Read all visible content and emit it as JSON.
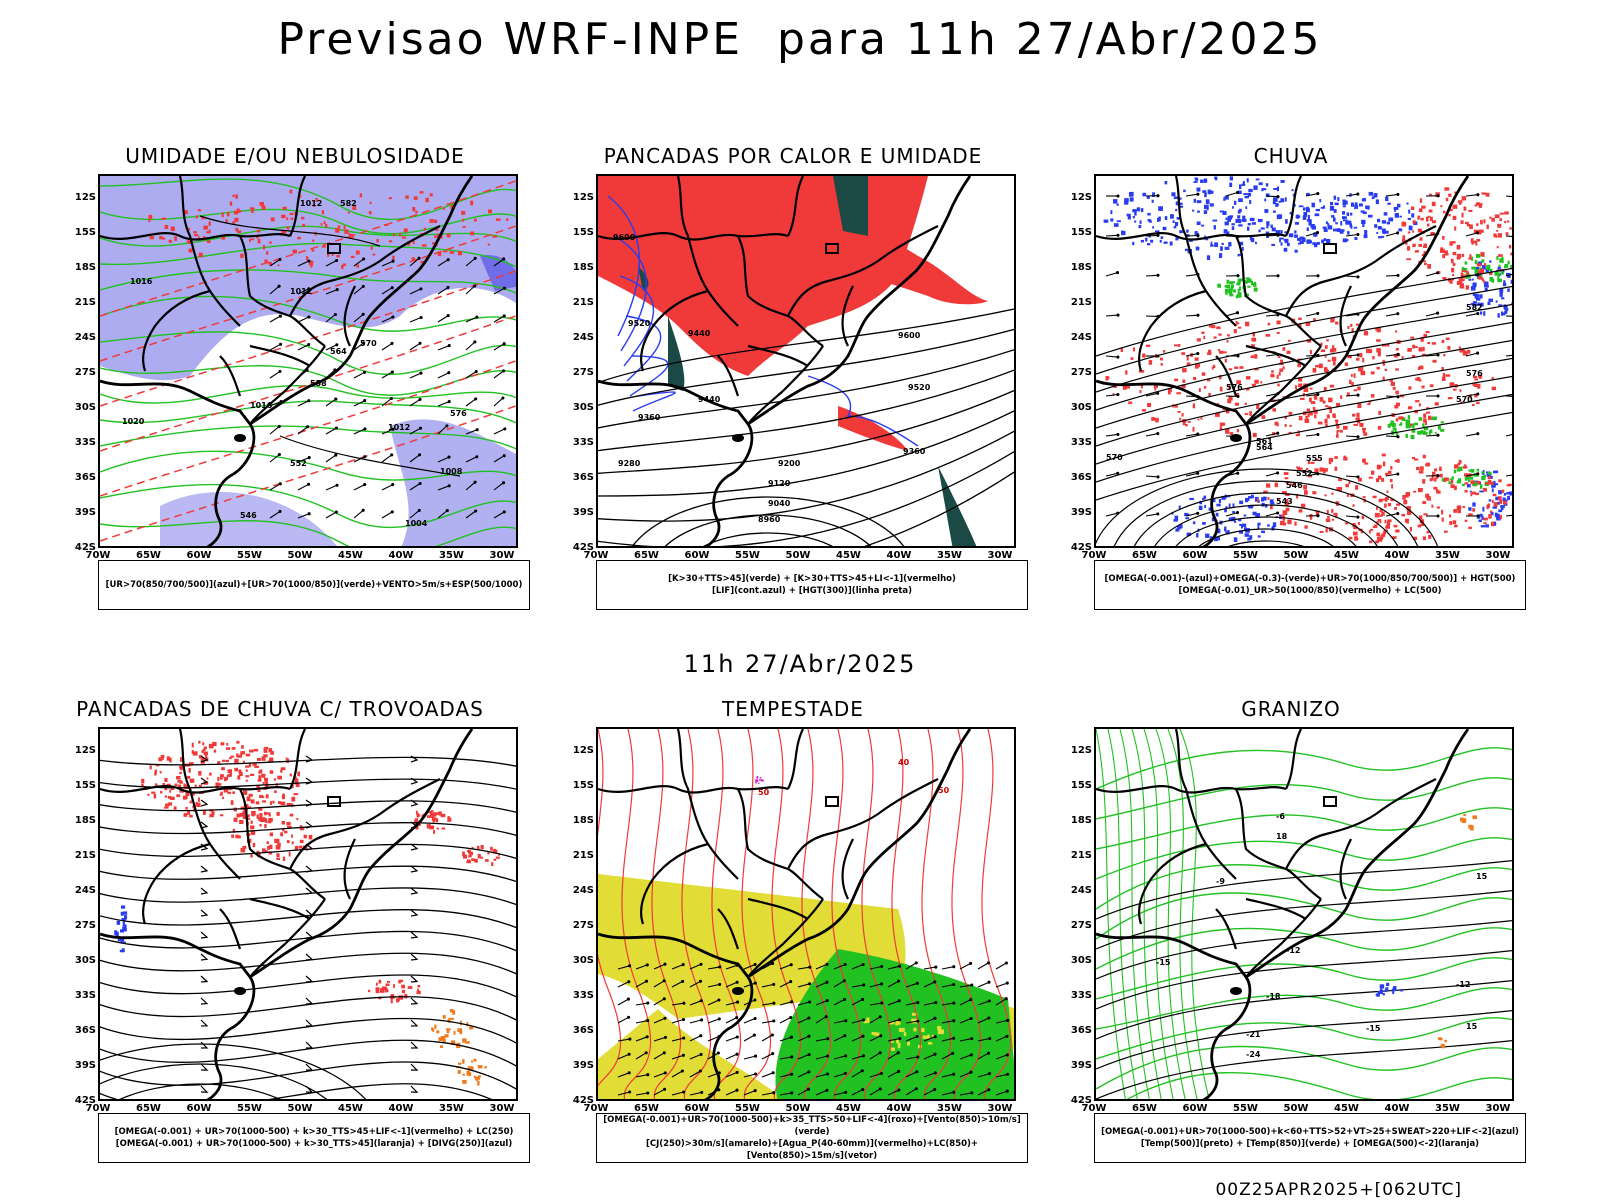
{
  "header": {
    "title": "Previsao WRF-INPE  para 11h 27/Abr/2025",
    "mid_title": "11h 27/Abr/2025",
    "footer": "00Z25APR2025+[062UTC]"
  },
  "axes": {
    "lat_labels": [
      "12S",
      "15S",
      "18S",
      "21S",
      "24S",
      "27S",
      "30S",
      "33S",
      "36S",
      "39S",
      "42S"
    ],
    "lon_labels": [
      "70W",
      "65W",
      "60W",
      "55W",
      "50W",
      "45W",
      "40W",
      "35W",
      "30W"
    ]
  },
  "colors": {
    "red": "#f03a3a",
    "blue": "#2a3cf0",
    "green": "#22c122",
    "lavender": "#a9a8f0",
    "yellow": "#e1dc36",
    "darkteal": "#1b4a46",
    "orange": "#f07a1a",
    "magenta": "#d21ad2"
  },
  "panels": [
    {
      "id": "umidade",
      "title": "UMIDADE E/OU NEBULOSIDADE",
      "legend": [
        "[UR>70(850/700/500)](azul)+[UR>70(1000/850)](verde)+VENTO>5m/s+ESP(500/1000)"
      ],
      "contour_labels": [
        "1012",
        "1012",
        "1016",
        "1020",
        "1016",
        "1008",
        "1004",
        "1012",
        "576",
        "570",
        "564",
        "558",
        "552",
        "546",
        "582"
      ]
    },
    {
      "id": "pancadas-calor",
      "title": "PANCADAS POR CALOR E UMIDADE",
      "legend": [
        "[K>30+TTS>45](verde) + [K>30+TTS>45+LI<-1](vermelho)",
        "[LIF](cont.azul) + [HGT(300)](linha preta)"
      ],
      "contour_labels": [
        "9600",
        "9520",
        "9440",
        "9360",
        "9280",
        "9200",
        "9120",
        "9040",
        "8960",
        "9600",
        "9520",
        "9440",
        "9360"
      ]
    },
    {
      "id": "chuva",
      "title": "CHUVA",
      "legend": [
        "[OMEGA(-0.001)-(azul)+OMEGA(-0.3)-(verde)+UR>70(1000/850/700/500)] + HGT(500)",
        "[OMEGA(-0.01)_UR>50(1000/850)(vermelho) + LC(500)"
      ],
      "contour_labels": [
        "582",
        "576",
        "570",
        "564",
        "561",
        "555",
        "552",
        "546",
        "543",
        "576",
        "570"
      ]
    },
    {
      "id": "pancadas-trovoadas",
      "title": "PANCADAS DE CHUVA C/ TROVOADAS",
      "legend": [
        "[OMEGA(-0.001) + UR>70(1000-500) + k>30_TTS>45+LIF<-1](vermelho) + LC(250)",
        "[OMEGA(-0.001) + UR>70(1000-500) + k>30_TTS>45](laranja) + [DIVG(250)](azul)"
      ],
      "contour_labels": []
    },
    {
      "id": "tempestade",
      "title": "TEMPESTADE",
      "legend": [
        "[OMEGA(-0.001)+UR>70(1000-500)+k>35_TTS>50+LIF<-4](roxo)+[Vento(850)>10m/s](verde)",
        "[CJ(250)>30m/s](amarelo)+[Agua_P(40-60mm)](vermelho)+LC(850)+[Vento(850)>15m/s](vetor)"
      ],
      "contour_labels": [
        "50",
        "40",
        "50"
      ]
    },
    {
      "id": "granizo",
      "title": "GRANIZO",
      "legend": [
        "[OMEGA(-0.001)+UR>70(1000-500)+k<60+TTS>52+VT>25+SWEAT>220+LIF<-2](azul)",
        "[Temp(500)](preto) + [Temp(850)](verde) + [OMEGA(500)<-2](laranja)"
      ],
      "contour_labels": [
        "-12",
        "-15",
        "-18",
        "-21",
        "-24",
        "-12",
        "-15",
        "15",
        "15",
        "18",
        "-9",
        "-6"
      ]
    }
  ]
}
